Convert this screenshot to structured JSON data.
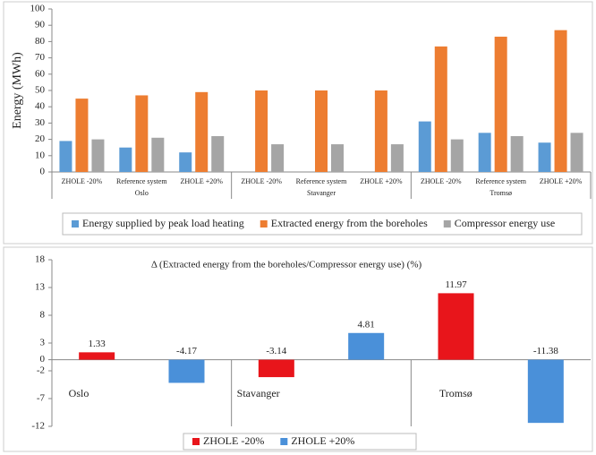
{
  "chart_data": [
    {
      "type": "bar",
      "ylabel": "Energy (MWh)",
      "categories": [
        "ZHOLE -20%",
        "Reference system",
        "ZHOLE +20%",
        "ZHOLE -20%",
        "Reference system",
        "ZHOLE +20%",
        "ZHOLE -20%",
        "Reference system",
        "ZHOLE +20%"
      ],
      "groups": [
        "Oslo",
        "Stavanger",
        "Tromsø"
      ],
      "series": [
        {
          "name": "Energy supplied by peak load heating",
          "color": "#5b9bd5",
          "values": [
            19,
            15,
            12,
            0,
            0,
            0,
            31,
            24,
            18
          ]
        },
        {
          "name": "Extracted energy from the boreholes",
          "color": "#ed7d31",
          "values": [
            45,
            47,
            49,
            50,
            50,
            50,
            77,
            83,
            87
          ]
        },
        {
          "name": "Compressor energy use",
          "color": "#a5a5a5",
          "values": [
            20,
            21,
            22,
            17,
            17,
            17,
            20,
            22,
            24
          ]
        }
      ],
      "ylim": [
        0,
        100
      ],
      "yticks": [
        0,
        10,
        20,
        30,
        40,
        50,
        60,
        70,
        80,
        90,
        100
      ],
      "grid": false,
      "legend": "bottom"
    },
    {
      "type": "bar",
      "title": "Δ (Extracted energy from the boreholes/Compressor energy use) (%)",
      "categories": [
        "Oslo",
        "Stavanger",
        "Tromsø"
      ],
      "series": [
        {
          "name": "ZHOLE -20%",
          "color": "#e8151b",
          "values": [
            1.33,
            -3.14,
            11.97
          ]
        },
        {
          "name": "ZHOLE +20%",
          "color": "#4a90d9",
          "values": [
            -4.17,
            4.81,
            -11.38
          ]
        }
      ],
      "ylim": [
        -12,
        18
      ],
      "yticks": [
        18,
        13,
        8,
        3,
        0,
        -2,
        -7,
        -12
      ],
      "grid": false,
      "legend": "bottom",
      "data_labels": true
    }
  ]
}
